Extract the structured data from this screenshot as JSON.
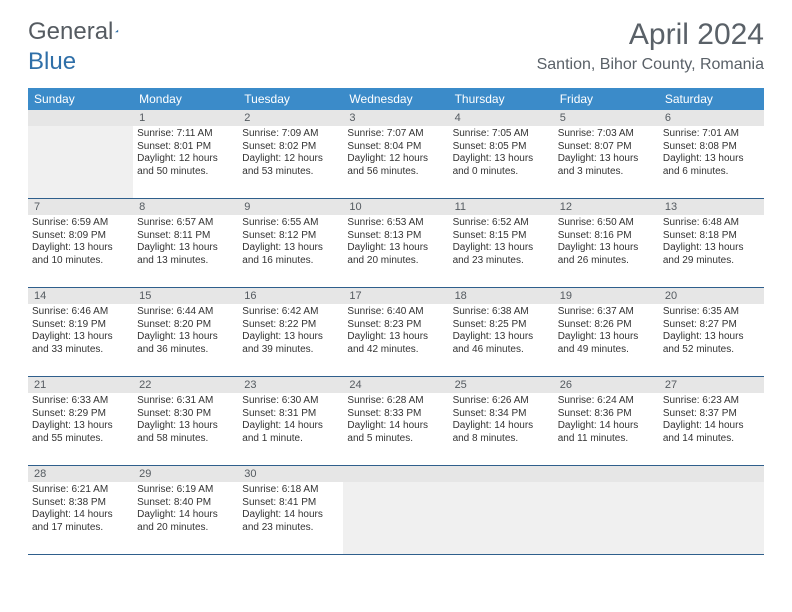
{
  "logo": {
    "text1": "General",
    "text2": "Blue"
  },
  "title": "April 2024",
  "location": "Santion, Bihor County, Romania",
  "colors": {
    "header_bg": "#3b8bc9",
    "header_text": "#ffffff",
    "daynum_bg": "#e6e6e6",
    "border": "#2f5f8c",
    "text": "#333333",
    "title_color": "#5a6168"
  },
  "days_of_week": [
    "Sunday",
    "Monday",
    "Tuesday",
    "Wednesday",
    "Thursday",
    "Friday",
    "Saturday"
  ],
  "weeks": [
    {
      "nums": [
        "",
        "1",
        "2",
        "3",
        "4",
        "5",
        "6"
      ],
      "cells": [
        null,
        {
          "sunrise": "Sunrise: 7:11 AM",
          "sunset": "Sunset: 8:01 PM",
          "daylight": "Daylight: 12 hours and 50 minutes."
        },
        {
          "sunrise": "Sunrise: 7:09 AM",
          "sunset": "Sunset: 8:02 PM",
          "daylight": "Daylight: 12 hours and 53 minutes."
        },
        {
          "sunrise": "Sunrise: 7:07 AM",
          "sunset": "Sunset: 8:04 PM",
          "daylight": "Daylight: 12 hours and 56 minutes."
        },
        {
          "sunrise": "Sunrise: 7:05 AM",
          "sunset": "Sunset: 8:05 PM",
          "daylight": "Daylight: 13 hours and 0 minutes."
        },
        {
          "sunrise": "Sunrise: 7:03 AM",
          "sunset": "Sunset: 8:07 PM",
          "daylight": "Daylight: 13 hours and 3 minutes."
        },
        {
          "sunrise": "Sunrise: 7:01 AM",
          "sunset": "Sunset: 8:08 PM",
          "daylight": "Daylight: 13 hours and 6 minutes."
        }
      ]
    },
    {
      "nums": [
        "7",
        "8",
        "9",
        "10",
        "11",
        "12",
        "13"
      ],
      "cells": [
        {
          "sunrise": "Sunrise: 6:59 AM",
          "sunset": "Sunset: 8:09 PM",
          "daylight": "Daylight: 13 hours and 10 minutes."
        },
        {
          "sunrise": "Sunrise: 6:57 AM",
          "sunset": "Sunset: 8:11 PM",
          "daylight": "Daylight: 13 hours and 13 minutes."
        },
        {
          "sunrise": "Sunrise: 6:55 AM",
          "sunset": "Sunset: 8:12 PM",
          "daylight": "Daylight: 13 hours and 16 minutes."
        },
        {
          "sunrise": "Sunrise: 6:53 AM",
          "sunset": "Sunset: 8:13 PM",
          "daylight": "Daylight: 13 hours and 20 minutes."
        },
        {
          "sunrise": "Sunrise: 6:52 AM",
          "sunset": "Sunset: 8:15 PM",
          "daylight": "Daylight: 13 hours and 23 minutes."
        },
        {
          "sunrise": "Sunrise: 6:50 AM",
          "sunset": "Sunset: 8:16 PM",
          "daylight": "Daylight: 13 hours and 26 minutes."
        },
        {
          "sunrise": "Sunrise: 6:48 AM",
          "sunset": "Sunset: 8:18 PM",
          "daylight": "Daylight: 13 hours and 29 minutes."
        }
      ]
    },
    {
      "nums": [
        "14",
        "15",
        "16",
        "17",
        "18",
        "19",
        "20"
      ],
      "cells": [
        {
          "sunrise": "Sunrise: 6:46 AM",
          "sunset": "Sunset: 8:19 PM",
          "daylight": "Daylight: 13 hours and 33 minutes."
        },
        {
          "sunrise": "Sunrise: 6:44 AM",
          "sunset": "Sunset: 8:20 PM",
          "daylight": "Daylight: 13 hours and 36 minutes."
        },
        {
          "sunrise": "Sunrise: 6:42 AM",
          "sunset": "Sunset: 8:22 PM",
          "daylight": "Daylight: 13 hours and 39 minutes."
        },
        {
          "sunrise": "Sunrise: 6:40 AM",
          "sunset": "Sunset: 8:23 PM",
          "daylight": "Daylight: 13 hours and 42 minutes."
        },
        {
          "sunrise": "Sunrise: 6:38 AM",
          "sunset": "Sunset: 8:25 PM",
          "daylight": "Daylight: 13 hours and 46 minutes."
        },
        {
          "sunrise": "Sunrise: 6:37 AM",
          "sunset": "Sunset: 8:26 PM",
          "daylight": "Daylight: 13 hours and 49 minutes."
        },
        {
          "sunrise": "Sunrise: 6:35 AM",
          "sunset": "Sunset: 8:27 PM",
          "daylight": "Daylight: 13 hours and 52 minutes."
        }
      ]
    },
    {
      "nums": [
        "21",
        "22",
        "23",
        "24",
        "25",
        "26",
        "27"
      ],
      "cells": [
        {
          "sunrise": "Sunrise: 6:33 AM",
          "sunset": "Sunset: 8:29 PM",
          "daylight": "Daylight: 13 hours and 55 minutes."
        },
        {
          "sunrise": "Sunrise: 6:31 AM",
          "sunset": "Sunset: 8:30 PM",
          "daylight": "Daylight: 13 hours and 58 minutes."
        },
        {
          "sunrise": "Sunrise: 6:30 AM",
          "sunset": "Sunset: 8:31 PM",
          "daylight": "Daylight: 14 hours and 1 minute."
        },
        {
          "sunrise": "Sunrise: 6:28 AM",
          "sunset": "Sunset: 8:33 PM",
          "daylight": "Daylight: 14 hours and 5 minutes."
        },
        {
          "sunrise": "Sunrise: 6:26 AM",
          "sunset": "Sunset: 8:34 PM",
          "daylight": "Daylight: 14 hours and 8 minutes."
        },
        {
          "sunrise": "Sunrise: 6:24 AM",
          "sunset": "Sunset: 8:36 PM",
          "daylight": "Daylight: 14 hours and 11 minutes."
        },
        {
          "sunrise": "Sunrise: 6:23 AM",
          "sunset": "Sunset: 8:37 PM",
          "daylight": "Daylight: 14 hours and 14 minutes."
        }
      ]
    },
    {
      "nums": [
        "28",
        "29",
        "30",
        "",
        "",
        "",
        ""
      ],
      "cells": [
        {
          "sunrise": "Sunrise: 6:21 AM",
          "sunset": "Sunset: 8:38 PM",
          "daylight": "Daylight: 14 hours and 17 minutes."
        },
        {
          "sunrise": "Sunrise: 6:19 AM",
          "sunset": "Sunset: 8:40 PM",
          "daylight": "Daylight: 14 hours and 20 minutes."
        },
        {
          "sunrise": "Sunrise: 6:18 AM",
          "sunset": "Sunset: 8:41 PM",
          "daylight": "Daylight: 14 hours and 23 minutes."
        },
        null,
        null,
        null,
        null
      ]
    }
  ]
}
